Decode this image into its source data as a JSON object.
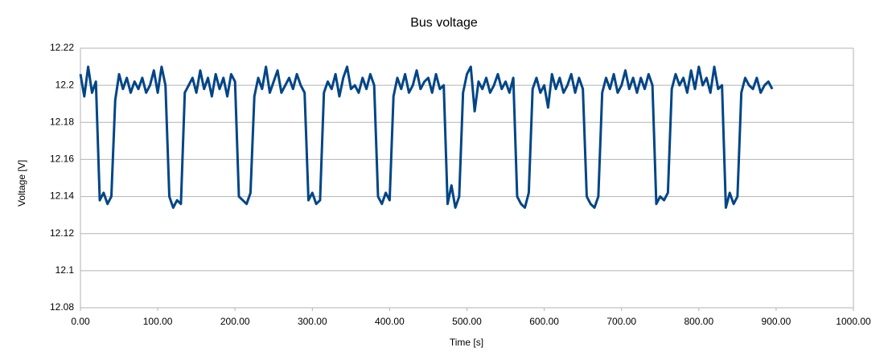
{
  "chart_data": {
    "type": "line",
    "title": "Bus voltage",
    "x_label": "Time [s]",
    "y_label": "Voltage [V]",
    "x": [
      0,
      5,
      10,
      15,
      20,
      25,
      30,
      35,
      40,
      45,
      50,
      55,
      60,
      65,
      70,
      75,
      80,
      85,
      90,
      95,
      100,
      105,
      110,
      115,
      120,
      125,
      130,
      135,
      140,
      145,
      150,
      155,
      160,
      165,
      170,
      175,
      180,
      185,
      190,
      195,
      200,
      205,
      210,
      215,
      220,
      225,
      230,
      235,
      240,
      245,
      250,
      255,
      260,
      265,
      270,
      275,
      280,
      285,
      290,
      295,
      300,
      305,
      310,
      315,
      320,
      325,
      330,
      335,
      340,
      345,
      350,
      355,
      360,
      365,
      370,
      375,
      380,
      385,
      390,
      395,
      400,
      405,
      410,
      415,
      420,
      425,
      430,
      435,
      440,
      445,
      450,
      455,
      460,
      465,
      470,
      475,
      480,
      485,
      490,
      495,
      500,
      505,
      510,
      515,
      520,
      525,
      530,
      535,
      540,
      545,
      550,
      555,
      560,
      565,
      570,
      575,
      580,
      585,
      590,
      595,
      600,
      605,
      610,
      615,
      620,
      625,
      630,
      635,
      640,
      645,
      650,
      655,
      660,
      665,
      670,
      675,
      680,
      685,
      690,
      695,
      700,
      705,
      710,
      715,
      720,
      725,
      730,
      735,
      740,
      745,
      750,
      755,
      760,
      765,
      770,
      775,
      780,
      785,
      790,
      795,
      800,
      805,
      810,
      815,
      820,
      825,
      830,
      835,
      840,
      845,
      850,
      855,
      860,
      865,
      870,
      875,
      880,
      885,
      890,
      895
    ],
    "series": [
      {
        "name": "Bus voltage",
        "color": "#004586",
        "values": [
          12.206,
          12.194,
          12.21,
          12.196,
          12.202,
          12.138,
          12.142,
          12.136,
          12.14,
          12.192,
          12.206,
          12.198,
          12.204,
          12.196,
          12.202,
          12.198,
          12.204,
          12.196,
          12.2,
          12.208,
          12.196,
          12.21,
          12.2,
          12.14,
          12.134,
          12.138,
          12.136,
          12.196,
          12.2,
          12.204,
          12.196,
          12.208,
          12.198,
          12.204,
          12.194,
          12.206,
          12.198,
          12.204,
          12.194,
          12.206,
          12.202,
          12.14,
          12.138,
          12.136,
          12.142,
          12.194,
          12.204,
          12.198,
          12.21,
          12.196,
          12.202,
          12.208,
          12.196,
          12.2,
          12.204,
          12.198,
          12.206,
          12.2,
          12.196,
          12.138,
          12.142,
          12.136,
          12.138,
          12.196,
          12.202,
          12.198,
          12.206,
          12.194,
          12.204,
          12.21,
          12.198,
          12.2,
          12.196,
          12.204,
          12.198,
          12.206,
          12.2,
          12.14,
          12.136,
          12.142,
          12.138,
          12.194,
          12.204,
          12.198,
          12.206,
          12.196,
          12.2,
          12.208,
          12.198,
          12.202,
          12.204,
          12.196,
          12.206,
          12.198,
          12.2,
          12.136,
          12.146,
          12.134,
          12.14,
          12.196,
          12.206,
          12.21,
          12.186,
          12.202,
          12.198,
          12.204,
          12.196,
          12.2,
          12.206,
          12.198,
          12.202,
          12.196,
          12.204,
          12.14,
          12.136,
          12.134,
          12.142,
          12.198,
          12.204,
          12.196,
          12.2,
          12.188,
          12.206,
          12.198,
          12.204,
          12.196,
          12.2,
          12.206,
          12.196,
          12.204,
          12.198,
          12.14,
          12.136,
          12.134,
          12.14,
          12.196,
          12.204,
          12.198,
          12.206,
          12.196,
          12.2,
          12.208,
          12.198,
          12.204,
          12.196,
          12.204,
          12.198,
          12.206,
          12.2,
          12.136,
          12.14,
          12.138,
          12.142,
          12.198,
          12.206,
          12.2,
          12.204,
          12.196,
          12.208,
          12.198,
          12.21,
          12.2,
          12.204,
          12.196,
          12.21,
          12.198,
          12.2,
          12.134,
          12.142,
          12.136,
          12.14,
          12.196,
          12.204,
          12.2,
          12.198,
          12.204,
          12.196,
          12.2,
          12.202,
          12.198
        ]
      }
    ],
    "xlim": [
      0,
      1000
    ],
    "xticks": [
      {
        "value": 0,
        "label": "0.00"
      },
      {
        "value": 100,
        "label": "100.00"
      },
      {
        "value": 200,
        "label": "200.00"
      },
      {
        "value": 300,
        "label": "300.00"
      },
      {
        "value": 400,
        "label": "400.00"
      },
      {
        "value": 500,
        "label": "500.00"
      },
      {
        "value": 600,
        "label": "600.00"
      },
      {
        "value": 700,
        "label": "700.00"
      },
      {
        "value": 800,
        "label": "800.00"
      },
      {
        "value": 900,
        "label": "900.00"
      },
      {
        "value": 1000,
        "label": "1000.00"
      }
    ],
    "ylim": [
      12.08,
      12.22
    ],
    "yticks": [
      12.08,
      12.1,
      12.12,
      12.14,
      12.16,
      12.18,
      12.2,
      12.22
    ],
    "grid": true
  }
}
